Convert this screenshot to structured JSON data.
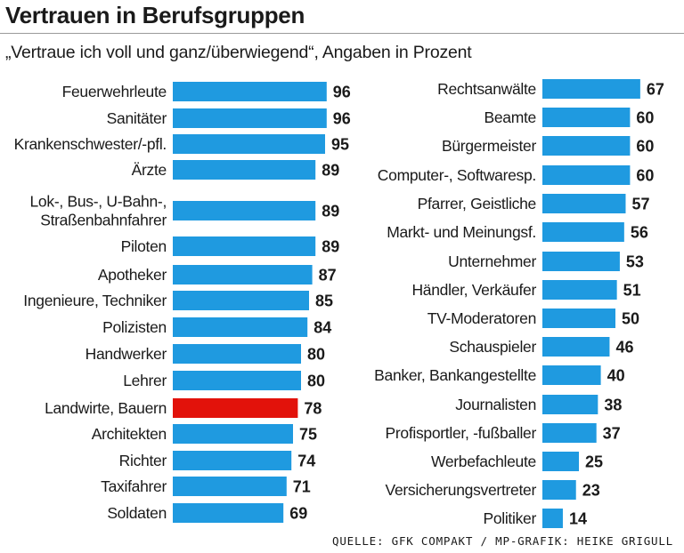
{
  "chart_data": {
    "type": "bar",
    "orientation": "horizontal",
    "title": "Vertrauen in Berufsgruppen",
    "subtitle": "„Vertraue ich voll und ganz/überwiegend“, Angaben in Prozent",
    "source": "QUELLE: GFK COMPAKT / MP-GRAFIK: HEIKE GRIGULL",
    "unit": "Prozent",
    "colors": {
      "bar": "#1f9ae0",
      "highlight": "#e2120b",
      "text": "#1a1a1a"
    },
    "panels": [
      {
        "position": "left",
        "categories": [
          "Feuerwehrleute",
          "Sanitäter",
          "Krankenschwester/-pfl.",
          "Ärzte",
          "Lok-, Bus-, U-Bahn-,\nStraßenbahnfahrer",
          "Piloten",
          "Apotheker",
          "Ingenieure, Techniker",
          "Polizisten",
          "Handwerker",
          "Lehrer",
          "Landwirte, Bauern",
          "Architekten",
          "Richter",
          "Taxifahrer",
          "Soldaten"
        ],
        "values": [
          96,
          96,
          95,
          89,
          89,
          89,
          87,
          85,
          84,
          80,
          80,
          78,
          75,
          74,
          71,
          69
        ],
        "highlight": "Landwirte, Bauern"
      },
      {
        "position": "right",
        "categories": [
          "Rechtsanwälte",
          "Beamte",
          "Bürgermeister",
          "Computer-, Softwaresp.",
          "Pfarrer, Geistliche",
          "Markt- und Meinungsf.",
          "Unternehmer",
          "Händler, Verkäufer",
          "TV-Moderatoren",
          "Schauspieler",
          "Banker, Bankangestellte",
          "Journalisten",
          "Profisportler, -fußballer",
          "Werbefachleute",
          "Versicherungsvertreter",
          "Politiker"
        ],
        "values": [
          67,
          60,
          60,
          60,
          57,
          56,
          53,
          51,
          50,
          46,
          40,
          38,
          37,
          25,
          23,
          14
        ],
        "highlight": null
      }
    ]
  }
}
